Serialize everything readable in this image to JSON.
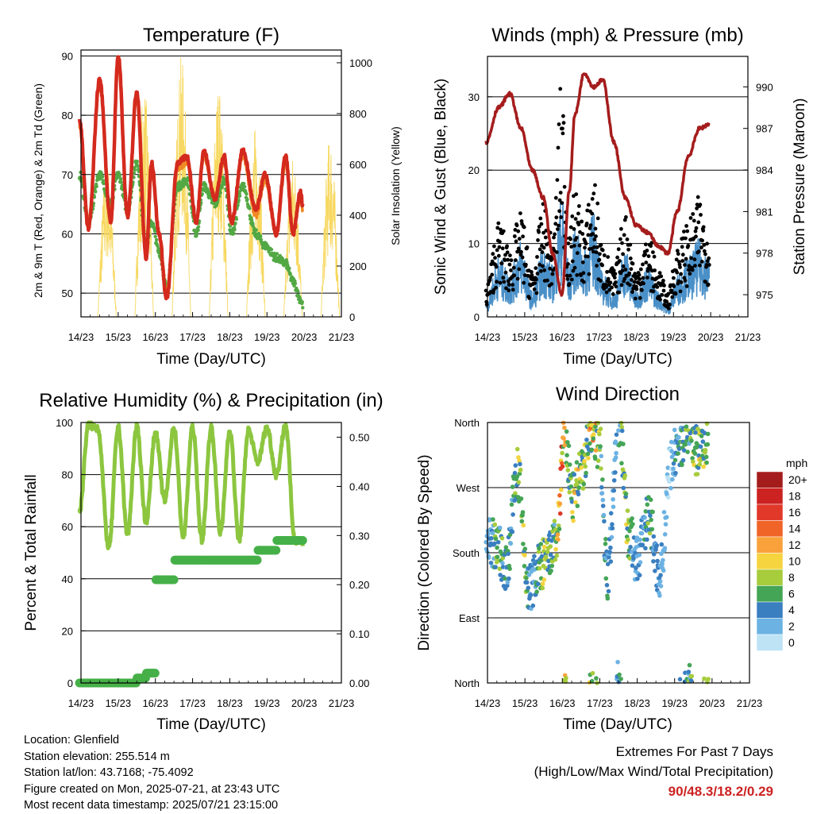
{
  "x_ticks": [
    "14/23",
    "15/23",
    "16/23",
    "17/23",
    "18/23",
    "19/23",
    "20/23",
    "21/23"
  ],
  "x_label": "Time (Day/UTC)",
  "panels": {
    "temperature": {
      "title": "Temperature (F)",
      "ylabel_left": "2m & 9m T (Red, Orange) & 2m Td (Green)",
      "ylabel_right": "Solar Insolation (Yellow)",
      "left_ticks": [
        "50",
        "60",
        "70",
        "80",
        "90"
      ],
      "right_ticks": [
        "0",
        "200",
        "400",
        "600",
        "800",
        "1000"
      ]
    },
    "winds": {
      "title": "Winds (mph) & Pressure (mb)",
      "ylabel_left": "Sonic Wind & Gust (Blue, Black)",
      "ylabel_right": "Station Pressure (Maroon)",
      "left_ticks": [
        "0",
        "10",
        "20",
        "30"
      ],
      "right_ticks": [
        "975",
        "978",
        "981",
        "984",
        "987",
        "990"
      ]
    },
    "humidity": {
      "title": "Relative Humidity (%) & Precipitation (in)",
      "ylabel_left": "Percent & Total Rainfall",
      "left_ticks": [
        "0",
        "20",
        "40",
        "60",
        "80",
        "100"
      ],
      "right_ticks": [
        "0.00",
        "0.10",
        "0.20",
        "0.30",
        "0.40",
        "0.50"
      ]
    },
    "direction": {
      "title": "Wind Direction",
      "ylabel_left": "Direction (Colored By Speed)",
      "left_ticks": [
        "North",
        "East",
        "South",
        "West",
        "North"
      ],
      "legend_title": "mph",
      "legend_labels": [
        "20+",
        "18",
        "16",
        "14",
        "12",
        "10",
        "8",
        "6",
        "4",
        "2",
        "0"
      ],
      "legend_colors": [
        "#a51c1c",
        "#cc2222",
        "#e0392a",
        "#f06428",
        "#f9a23c",
        "#f5d43f",
        "#a7cc3c",
        "#45a556",
        "#3a7fc0",
        "#6cb2e3",
        "#bde3f5"
      ]
    }
  },
  "chart_data": [
    {
      "type": "line",
      "title": "Temperature (F)",
      "xlabel": "Time (Day/UTC)",
      "ylabel": "2m & 9m T (Red, Orange) & 2m Td (Green)",
      "ylim": [
        46,
        91
      ],
      "ylim_right": [
        0,
        1050
      ],
      "x": [
        14.96,
        15.2,
        15.5,
        15.8,
        16.0,
        16.25,
        16.5,
        16.75,
        16.9,
        17.1,
        17.3,
        17.6,
        17.85,
        18.1,
        18.3,
        18.6,
        18.85,
        19.05,
        19.35,
        19.7,
        19.95,
        20.25,
        20.5,
        20.7,
        20.9,
        20.96
      ],
      "series": [
        {
          "name": "2m T",
          "color": "#d42a1e",
          "values": [
            79,
            61,
            86,
            62,
            90,
            63,
            84,
            56,
            72,
            60,
            49,
            72,
            73,
            62,
            74,
            66,
            73,
            62,
            74,
            64,
            70,
            60,
            73,
            60,
            67,
            65
          ]
        },
        {
          "name": "9m T",
          "color": "#f08a24",
          "values": [
            78,
            62,
            85,
            63,
            89,
            63,
            83,
            57,
            71,
            60,
            50,
            71,
            72,
            62,
            73,
            66,
            72,
            62,
            73,
            63,
            69,
            60,
            72,
            60,
            66,
            64
          ]
        },
        {
          "name": "2m Td",
          "color": "#52a844",
          "values": [
            70,
            62,
            70,
            65,
            70,
            64,
            72,
            58,
            62,
            57,
            51,
            68,
            69,
            60,
            68,
            65,
            69,
            60,
            68,
            60,
            58,
            56,
            55,
            52,
            49,
            48
          ]
        },
        {
          "name": "Solar Insolation",
          "color": "#f7d860",
          "axis": "right",
          "values_peak_by_day": [
            620,
            910,
            1030,
            920,
            760,
            640,
            720,
            1000
          ]
        }
      ]
    },
    {
      "type": "line",
      "title": "Winds (mph) & Pressure (mb)",
      "xlabel": "Time (Day/UTC)",
      "ylabel": "Sonic Wind & Gust (Blue, Black)",
      "ylim": [
        0,
        35.5
      ],
      "ylim_right": [
        973.4,
        992.2
      ],
      "x": [
        14.96,
        15.3,
        15.6,
        15.9,
        16.2,
        16.5,
        16.75,
        17.0,
        17.2,
        17.35,
        17.6,
        17.85,
        18.1,
        18.4,
        18.7,
        19.0,
        19.3,
        19.6,
        19.85,
        20.1,
        20.4,
        20.7,
        20.96
      ],
      "series": [
        {
          "name": "Sonic Wind",
          "color": "#4a90c8",
          "values": [
            2,
            7,
            5,
            9,
            3,
            8,
            6,
            14,
            6,
            10,
            8,
            12,
            5,
            3,
            8,
            3,
            6,
            3,
            1,
            5,
            7,
            9,
            7
          ]
        },
        {
          "name": "Gust",
          "color": "#000000",
          "values": [
            4,
            12,
            9,
            13,
            6,
            14,
            10,
            30,
            10,
            16,
            12,
            18,
            9,
            6,
            13,
            6,
            11,
            6,
            3,
            9,
            12,
            15,
            12
          ]
        },
        {
          "name": "Station Pressure",
          "color": "#a51c1c",
          "axis": "right",
          "values": [
            986,
            988.5,
            989.5,
            987,
            984,
            982,
            978,
            975,
            982.5,
            988,
            991,
            990,
            990.5,
            986,
            982,
            980,
            979.5,
            978.5,
            978,
            981,
            985,
            987,
            987.3
          ]
        }
      ]
    },
    {
      "type": "line",
      "title": "Relative Humidity (%) & Precipitation (in)",
      "xlabel": "Time (Day/UTC)",
      "ylabel": "Percent & Total Rainfall",
      "ylim": [
        0,
        100
      ],
      "ylim_right": [
        0,
        0.53
      ],
      "x": [
        14.96,
        15.2,
        15.45,
        15.75,
        16.0,
        16.25,
        16.5,
        16.75,
        17.0,
        17.25,
        17.5,
        17.75,
        18.0,
        18.25,
        18.5,
        18.75,
        19.0,
        19.25,
        19.5,
        19.75,
        20.0,
        20.25,
        20.5,
        20.75,
        20.96
      ],
      "series": [
        {
          "name": "Relative Humidity",
          "color": "#8cc63f",
          "values": [
            66,
            99,
            98,
            52,
            98,
            57,
            98,
            62,
            96,
            70,
            98,
            56,
            98,
            55,
            98,
            58,
            97,
            55,
            97,
            85,
            98,
            80,
            99,
            55,
            54
          ]
        },
        {
          "name": "Total Precipitation",
          "color": "#46b048",
          "axis": "right",
          "values": [
            0,
            0,
            0,
            0,
            0,
            0,
            0.01,
            0.02,
            0.21,
            0.21,
            0.25,
            0.25,
            0.25,
            0.25,
            0.25,
            0.25,
            0.25,
            0.25,
            0.25,
            0.27,
            0.27,
            0.29,
            0.29,
            0.29,
            0.29
          ]
        }
      ]
    },
    {
      "type": "scatter",
      "title": "Wind Direction",
      "xlabel": "Time (Day/UTC)",
      "ylabel": "Direction (Colored By Speed)",
      "ylim": [
        0,
        360
      ],
      "x": [
        14.96,
        15.3,
        15.5,
        15.8,
        16.1,
        16.4,
        16.6,
        16.85,
        17.05,
        17.3,
        17.5,
        17.8,
        18.0,
        18.2,
        18.5,
        18.8,
        19.0,
        19.3,
        19.6,
        19.9,
        20.1,
        20.4,
        20.6,
        20.9
      ],
      "series": [
        {
          "name": "Direction",
          "values": [
            200,
            185,
            160,
            290,
            130,
            160,
            170,
            200,
            340,
            255,
            295,
            345,
            330,
            150,
            360,
            200,
            170,
            230,
            150,
            300,
            330,
            350,
            320,
            340
          ]
        }
      ]
    }
  ],
  "info": {
    "location": "Location: Glenfield",
    "elevation": "Station elevation: 255.514 m",
    "latlon": "Station lat/lon: 43.7168; -75.4092",
    "created": "Figure created on Mon, 2025-07-21, at 23:43 UTC",
    "recent": "Most recent data timestamp: 2025/07/21 23:15:00"
  },
  "extremes": {
    "title": "Extremes For Past 7 Days",
    "subtitle": "(High/Low/Max Wind/Total Precipitation)",
    "value": "90/48.3/18.2/0.29"
  }
}
